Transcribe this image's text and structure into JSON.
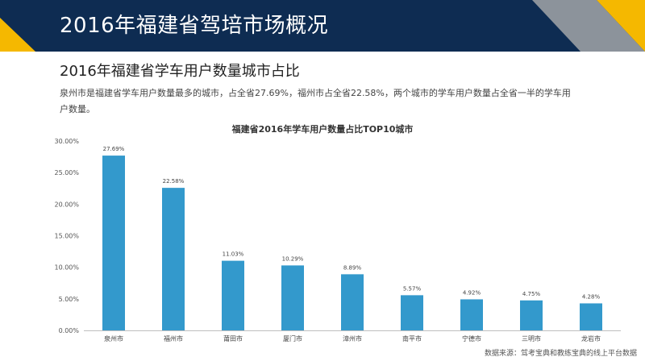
{
  "header": {
    "title": "2016年福建省驾培市场概况"
  },
  "section": {
    "title": "2016年福建省学车用户数量城市占比",
    "description": "泉州市是福建省学车用户数量最多的城市，占全省27.69%，福州市占全省22.58%，两个城市的学车用户数量占全省一半的学车用户数量。"
  },
  "colors": {
    "header_bg": "#0e2c52",
    "accent_yellow": "#f5b800",
    "accent_gray": "#8c939b",
    "bar": "#3399cc"
  },
  "chart_data": {
    "type": "bar",
    "title": "福建省2016年学车用户数量占比TOP10城市",
    "categories": [
      "泉州市",
      "福州市",
      "莆田市",
      "厦门市",
      "漳州市",
      "南平市",
      "宁德市",
      "三明市",
      "龙岩市"
    ],
    "values": [
      27.69,
      22.58,
      11.03,
      10.29,
      8.89,
      5.57,
      4.92,
      4.75,
      4.28
    ],
    "data_labels": [
      "27.69%",
      "22.58%",
      "11.03%",
      "10.29%",
      "8.89%",
      "5.57%",
      "4.92%",
      "4.75%",
      "4.28%"
    ],
    "y_ticks": [
      "0.00%",
      "5.00%",
      "10.00%",
      "15.00%",
      "20.00%",
      "25.00%",
      "30.00%"
    ],
    "ylim": [
      0,
      30
    ],
    "xlabel": "",
    "ylabel": "",
    "grid": false,
    "legend": "none"
  },
  "footer": {
    "source": "数据来源：驾考宝典和教练宝典的线上平台数据"
  }
}
